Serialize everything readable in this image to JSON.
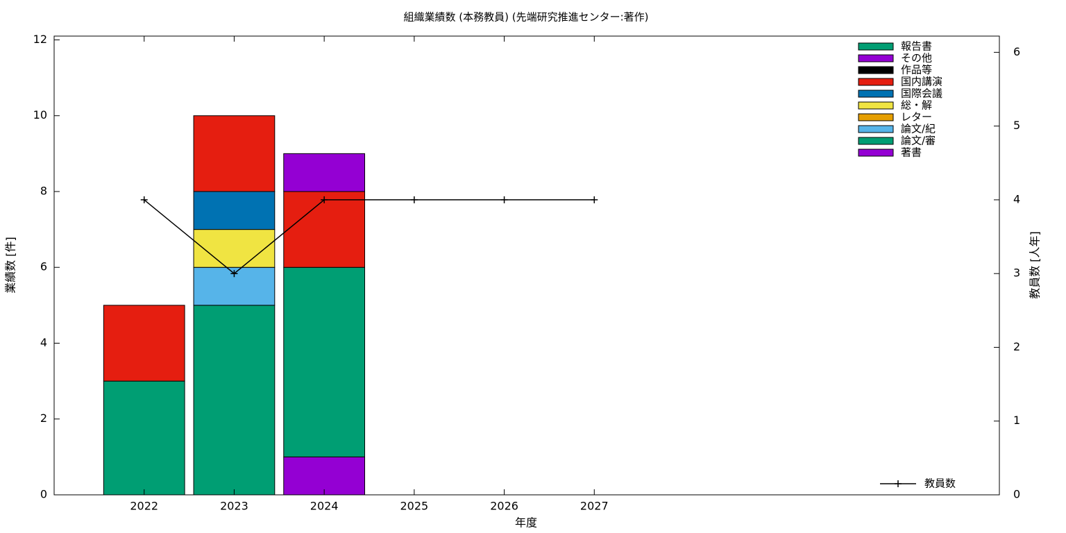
{
  "chart_data": {
    "type": "bar",
    "stacked": true,
    "title": "組織業績数 (本務教員) (先端研究推進センター:著作)",
    "x_label": "年度",
    "y_label": "業績数 [件]",
    "y2_label": "教員数 [人年]",
    "x": [
      2022,
      2023,
      2024,
      2025,
      2026,
      2027
    ],
    "xlim": [
      2021,
      2031.5
    ],
    "xticks": [
      2022,
      2023,
      2024,
      2025,
      2026,
      2027
    ],
    "ylim": [
      0,
      12.1
    ],
    "yticks": [
      0,
      2,
      4,
      6,
      8,
      10,
      12
    ],
    "y2lim": [
      0,
      6.22
    ],
    "y2ticks": [
      0,
      1,
      2,
      3,
      4,
      5,
      6
    ],
    "bar_width": 0.9,
    "series": [
      {
        "name": "著書",
        "color": "#9400d3",
        "values": [
          0,
          0,
          1,
          0,
          0,
          0
        ]
      },
      {
        "name": "論文/審",
        "color": "#009e73",
        "values": [
          3,
          5,
          5,
          0,
          0,
          0
        ]
      },
      {
        "name": "論文/紀",
        "color": "#56b4e9",
        "values": [
          0,
          1,
          0,
          0,
          0,
          0
        ]
      },
      {
        "name": "レター",
        "color": "#e69f00",
        "values": [
          0,
          0,
          0,
          0,
          0,
          0
        ]
      },
      {
        "name": "総・解",
        "color": "#f0e442",
        "values": [
          0,
          1,
          0,
          0,
          0,
          0
        ]
      },
      {
        "name": "国際会議",
        "color": "#0072b2",
        "values": [
          0,
          1,
          0,
          0,
          0,
          0
        ]
      },
      {
        "name": "国内講演",
        "color": "#e51e10",
        "values": [
          2,
          2,
          2,
          0,
          0,
          0
        ]
      },
      {
        "name": "作品等",
        "color": "#000000",
        "values": [
          0,
          0,
          0,
          0,
          0,
          0
        ]
      },
      {
        "name": "その他",
        "color": "#9400d3",
        "values": [
          0,
          0,
          1,
          0,
          0,
          0
        ]
      },
      {
        "name": "報告書",
        "color": "#009e73",
        "values": [
          0,
          0,
          0,
          0,
          0,
          0
        ]
      },
      {
        "name": "教員数",
        "color": "#000000",
        "type": "line",
        "axis": "y2",
        "values": [
          4,
          3,
          4,
          4,
          4,
          4
        ]
      }
    ]
  }
}
